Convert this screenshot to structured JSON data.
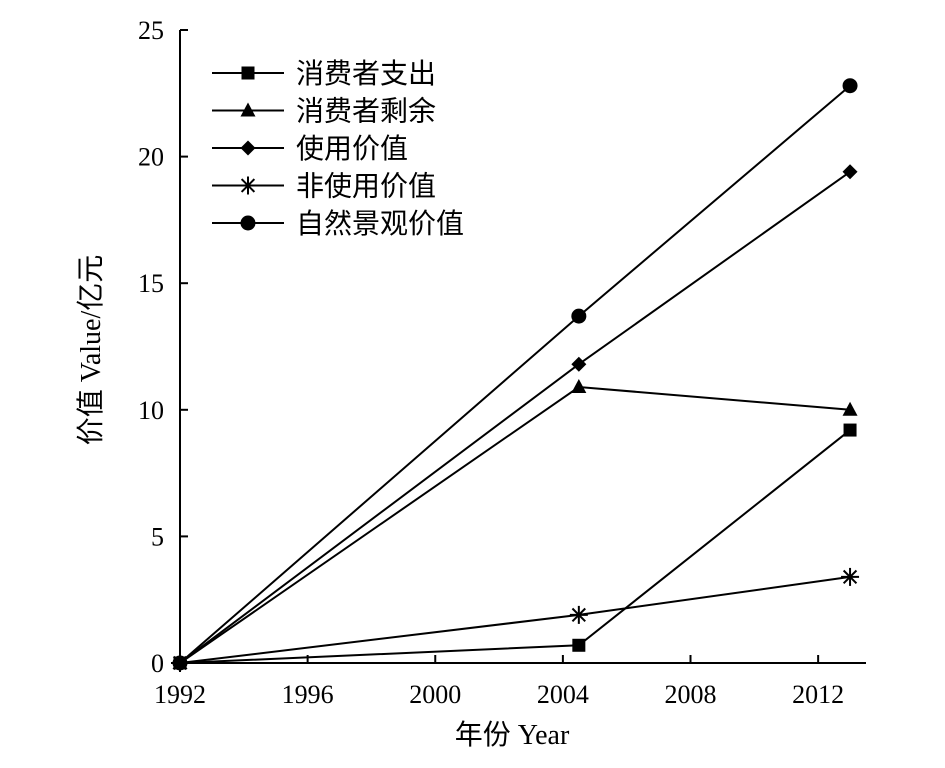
{
  "chart_data": {
    "type": "line",
    "title": "",
    "xlabel": "年份 Year",
    "ylabel": "价值 Value/亿元",
    "xlim": [
      1992,
      2013.5
    ],
    "ylim": [
      0,
      25
    ],
    "x_ticks": [
      1992,
      1996,
      2000,
      2004,
      2008,
      2012
    ],
    "y_ticks": [
      0,
      5,
      10,
      15,
      20,
      25
    ],
    "grid": false,
    "legend_position": "top-left",
    "series": [
      {
        "name": "消费者支出",
        "marker": "square",
        "x": [
          1992,
          2004.5,
          2013
        ],
        "y": [
          0,
          0.7,
          9.2
        ]
      },
      {
        "name": "消费者剩余",
        "marker": "triangle",
        "x": [
          1992,
          2004.5,
          2013
        ],
        "y": [
          0,
          10.9,
          10.0
        ]
      },
      {
        "name": "使用价值",
        "marker": "diamond",
        "x": [
          1992,
          2004.5,
          2013
        ],
        "y": [
          0,
          11.8,
          19.4
        ]
      },
      {
        "name": "非使用价值",
        "marker": "asterisk",
        "x": [
          1992,
          2004.5,
          2013
        ],
        "y": [
          0,
          1.9,
          3.4
        ]
      },
      {
        "name": "自然景观价值",
        "marker": "circle",
        "x": [
          1992,
          2004.5,
          2013
        ],
        "y": [
          0,
          13.7,
          22.8
        ]
      }
    ]
  }
}
